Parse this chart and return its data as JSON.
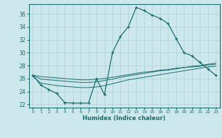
{
  "xlabel": "Humidex (Indice chaleur)",
  "bg_color": "#cce8ec",
  "grid_color": "#aad0d8",
  "line_color": "#1a6b6b",
  "xlim": [
    -0.5,
    23.5
  ],
  "ylim": [
    21.5,
    37.5
  ],
  "xticks": [
    0,
    1,
    2,
    3,
    4,
    5,
    6,
    7,
    8,
    9,
    10,
    11,
    12,
    13,
    14,
    15,
    16,
    17,
    18,
    19,
    20,
    21,
    22,
    23
  ],
  "yticks": [
    22,
    24,
    26,
    28,
    30,
    32,
    34,
    36
  ],
  "line1_x": [
    0,
    1,
    2,
    3,
    4,
    5,
    6,
    7,
    8,
    9,
    10,
    11,
    12,
    13,
    14,
    15,
    16,
    17,
    18,
    19,
    20,
    21,
    22,
    23
  ],
  "line1_y": [
    26.5,
    25.0,
    24.3,
    23.7,
    22.3,
    22.2,
    22.2,
    22.2,
    26.0,
    23.5,
    30.0,
    32.5,
    34.0,
    37.0,
    36.5,
    35.8,
    35.3,
    34.5,
    32.2,
    30.0,
    29.5,
    28.5,
    27.5,
    26.5
  ],
  "line2_x": [
    0,
    1,
    2,
    3,
    4,
    5,
    6,
    7,
    8,
    9,
    10,
    11,
    12,
    13,
    14,
    15,
    16,
    17,
    18,
    19,
    20,
    21,
    22,
    23
  ],
  "line2_y": [
    26.3,
    25.3,
    25.1,
    24.9,
    24.8,
    24.7,
    24.6,
    24.6,
    24.7,
    24.9,
    25.2,
    25.5,
    25.8,
    26.0,
    26.2,
    26.4,
    26.6,
    26.8,
    27.0,
    27.2,
    27.4,
    27.6,
    27.8,
    27.9
  ],
  "line3_x": [
    0,
    1,
    2,
    3,
    4,
    5,
    6,
    7,
    8,
    9,
    10,
    11,
    12,
    13,
    14,
    15,
    16,
    17,
    18,
    19,
    20,
    21,
    22,
    23
  ],
  "line3_y": [
    26.5,
    25.9,
    25.8,
    25.7,
    25.6,
    25.5,
    25.4,
    25.4,
    25.5,
    25.7,
    25.9,
    26.2,
    26.4,
    26.6,
    26.8,
    27.0,
    27.2,
    27.3,
    27.5,
    27.7,
    27.8,
    27.9,
    28.1,
    28.2
  ],
  "line4_x": [
    0,
    1,
    2,
    3,
    4,
    5,
    6,
    7,
    8,
    9,
    10,
    11,
    12,
    13,
    14,
    15,
    16,
    17,
    18,
    19,
    20,
    21,
    22,
    23
  ],
  "line4_y": [
    26.5,
    26.3,
    26.2,
    26.1,
    26.0,
    25.9,
    25.8,
    25.8,
    25.9,
    26.0,
    26.2,
    26.4,
    26.6,
    26.8,
    27.0,
    27.1,
    27.3,
    27.4,
    27.6,
    27.7,
    27.9,
    28.0,
    28.2,
    28.4
  ]
}
